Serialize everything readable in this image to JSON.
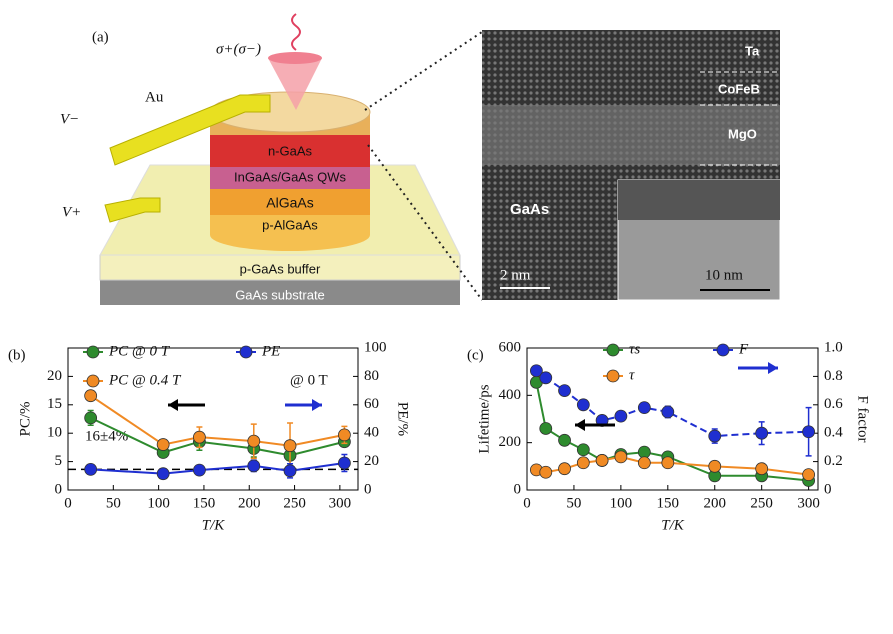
{
  "diagram": {
    "panel_label": "(a)",
    "light_label": "σ+(σ−)",
    "contact": "Au",
    "v_minus": "V−",
    "v_plus": "V+",
    "layers": [
      "n-GaAs",
      "InGaAs/GaAs QWs",
      "AlGaAs",
      "p-AlGaAs"
    ],
    "buffer": "p-GaAs buffer",
    "substrate": "GaAs substrate",
    "tem_labels": [
      "Ta",
      "CoFeB",
      "MgO",
      "GaAs"
    ],
    "scale_bars": [
      "2 nm",
      "10 nm"
    ]
  },
  "chart_data": [
    {
      "type": "line",
      "panel_label": "(b)",
      "xlabel": "T/K",
      "ylabel": "PC/%",
      "y2label": "PE/%",
      "x": [
        25,
        105,
        145,
        205,
        245,
        305
      ],
      "xlim": [
        0,
        320
      ],
      "xticks": [
        0,
        50,
        100,
        150,
        200,
        250,
        300
      ],
      "ylim": [
        0,
        25
      ],
      "yticks": [
        0,
        5,
        10,
        15,
        20
      ],
      "y2lim": [
        0,
        100
      ],
      "y2ticks": [
        0,
        20,
        40,
        60,
        80,
        100
      ],
      "series": [
        {
          "name": "PC @ 0 T",
          "color": "#2e8b2e",
          "values": [
            12.7,
            6.6,
            8.5,
            7.3,
            6.1,
            8.5
          ],
          "errors": [
            1.3,
            0.8,
            1.5,
            1.5,
            1.5,
            0.8
          ]
        },
        {
          "name": "PC @ 0.4 T",
          "color": "#f08a24",
          "values": [
            16.6,
            8.0,
            9.3,
            8.6,
            7.8,
            9.7
          ],
          "errors": [
            0.4,
            0.6,
            1.8,
            3.0,
            4.0,
            1.5
          ]
        },
        {
          "name": "PE",
          "legend_note": "@ 0 T",
          "color": "#1f2fd0",
          "axis": "y2",
          "values": [
            14.5,
            11.5,
            14,
            17,
            13.5,
            19
          ],
          "errors": [
            1.5,
            1.5,
            3,
            4,
            5,
            6
          ]
        }
      ],
      "annotation": {
        "text": "16±4%",
        "line_value": 14.5,
        "axis": "y2"
      }
    },
    {
      "type": "line",
      "panel_label": "(c)",
      "xlabel": "T/K",
      "ylabel": "Lifetime/ps",
      "y2label": "F factor",
      "x": [
        10,
        20,
        40,
        60,
        80,
        100,
        125,
        150,
        200,
        250,
        300
      ],
      "xlim": [
        0,
        310
      ],
      "xticks": [
        0,
        50,
        100,
        150,
        200,
        250,
        300
      ],
      "ylim": [
        0,
        600
      ],
      "yticks": [
        0,
        200,
        400,
        600
      ],
      "y2lim": [
        0,
        1
      ],
      "y2ticks": [
        0,
        0.2,
        0.4,
        0.6,
        0.8,
        {
          "value": 1,
          "label": "1.0"
        }
      ],
      "series": [
        {
          "name": "τs",
          "color": "#2e8b2e",
          "values": [
            455,
            260,
            210,
            170,
            125,
            150,
            160,
            140,
            60,
            60,
            40
          ],
          "errors": [
            20,
            20,
            15,
            12,
            10,
            15,
            20,
            20,
            15,
            15,
            15
          ]
        },
        {
          "name": "τ",
          "color": "#f08a24",
          "values": [
            85,
            75,
            90,
            115,
            125,
            140,
            115,
            115,
            100,
            90,
            65
          ],
          "errors": [
            10,
            10,
            10,
            10,
            10,
            10,
            10,
            10,
            10,
            10,
            10
          ]
        },
        {
          "name": "F",
          "color": "#1f2fd0",
          "axis": "y2",
          "dash": true,
          "values": [
            0.84,
            0.79,
            0.7,
            0.6,
            0.49,
            0.52,
            0.58,
            0.55,
            0.38,
            0.4,
            0.41
          ],
          "errors": [
            0.02,
            0.03,
            0.03,
            0.03,
            0.03,
            0.03,
            0.03,
            0.04,
            0.05,
            0.08,
            0.17
          ]
        }
      ]
    }
  ]
}
